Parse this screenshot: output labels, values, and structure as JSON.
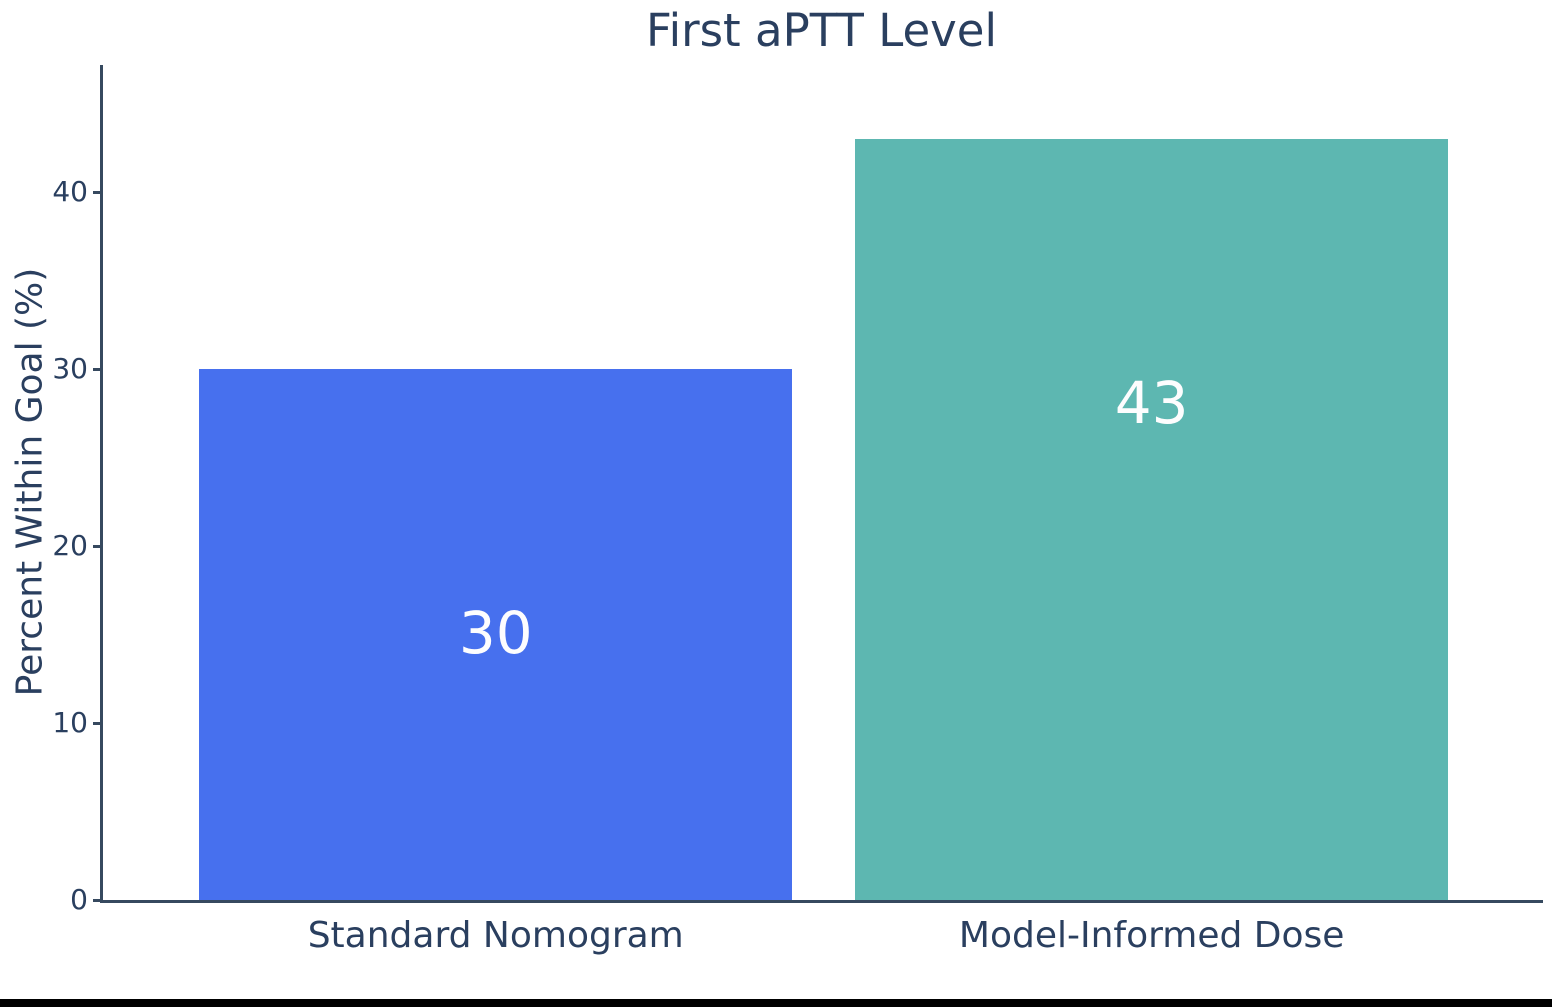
{
  "chart_data": {
    "type": "bar",
    "title": "First aPTT Level",
    "xlabel": "",
    "ylabel": "Percent Within Goal (%)",
    "categories": [
      "Standard Nomogram",
      "Model-Informed Dose"
    ],
    "values": [
      30,
      43
    ],
    "bar_labels": [
      "30",
      "43"
    ],
    "series": [
      {
        "name": "Standard Nomogram",
        "value": 30,
        "color": "#4770ee"
      },
      {
        "name": "Model-Informed Dose",
        "value": 43,
        "color": "#5db7b1"
      }
    ],
    "bar_colors": [
      "#4770ee",
      "#5db7b1"
    ],
    "bar_label_color": "#fdfdfe",
    "yticks": [
      0,
      10,
      20,
      30,
      40
    ],
    "ylim": [
      0,
      47.2
    ],
    "grid": false,
    "legend": "none",
    "text_color": "#2a3f5f",
    "axis_color": "#36495f"
  },
  "window": {
    "bottom_border_color": "#000000"
  }
}
